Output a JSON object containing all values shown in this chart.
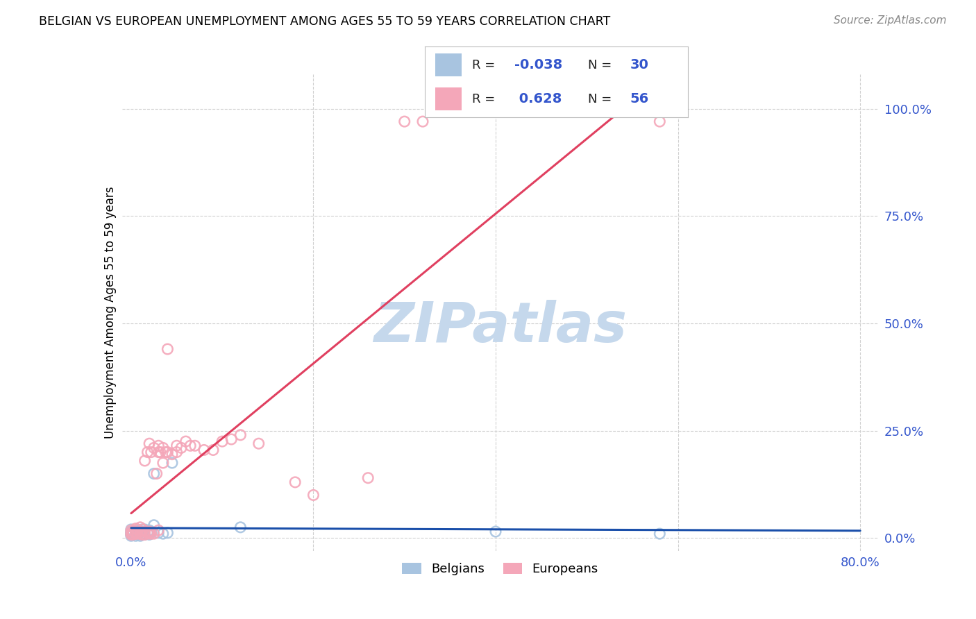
{
  "title": "BELGIAN VS EUROPEAN UNEMPLOYMENT AMONG AGES 55 TO 59 YEARS CORRELATION CHART",
  "source": "Source: ZipAtlas.com",
  "ylabel": "Unemployment Among Ages 55 to 59 years",
  "xlim": [
    -0.01,
    0.82
  ],
  "ylim": [
    -0.03,
    1.08
  ],
  "xticks": [
    0.0,
    0.2,
    0.4,
    0.6,
    0.8
  ],
  "xtick_labels": [
    "0.0%",
    "",
    "",
    "",
    "80.0%"
  ],
  "yticks_right": [
    0.0,
    0.25,
    0.5,
    0.75,
    1.0
  ],
  "ytick_right_labels": [
    "0.0%",
    "25.0%",
    "50.0%",
    "75.0%",
    "100.0%"
  ],
  "belgian_R": -0.038,
  "belgian_N": 30,
  "european_R": 0.628,
  "european_N": 56,
  "belgian_color": "#a8c4e0",
  "european_color": "#f4a7b9",
  "belgian_line_color": "#1a4faa",
  "european_line_color": "#e04060",
  "watermark_text": "ZIPatlas",
  "watermark_color": "#c5d8ec",
  "legend_value_color": "#3355cc",
  "legend_label_color": "#222222",
  "background_color": "#ffffff",
  "grid_color": "#d0d0d0",
  "tick_color": "#3355cc",
  "source_color": "#888888"
}
